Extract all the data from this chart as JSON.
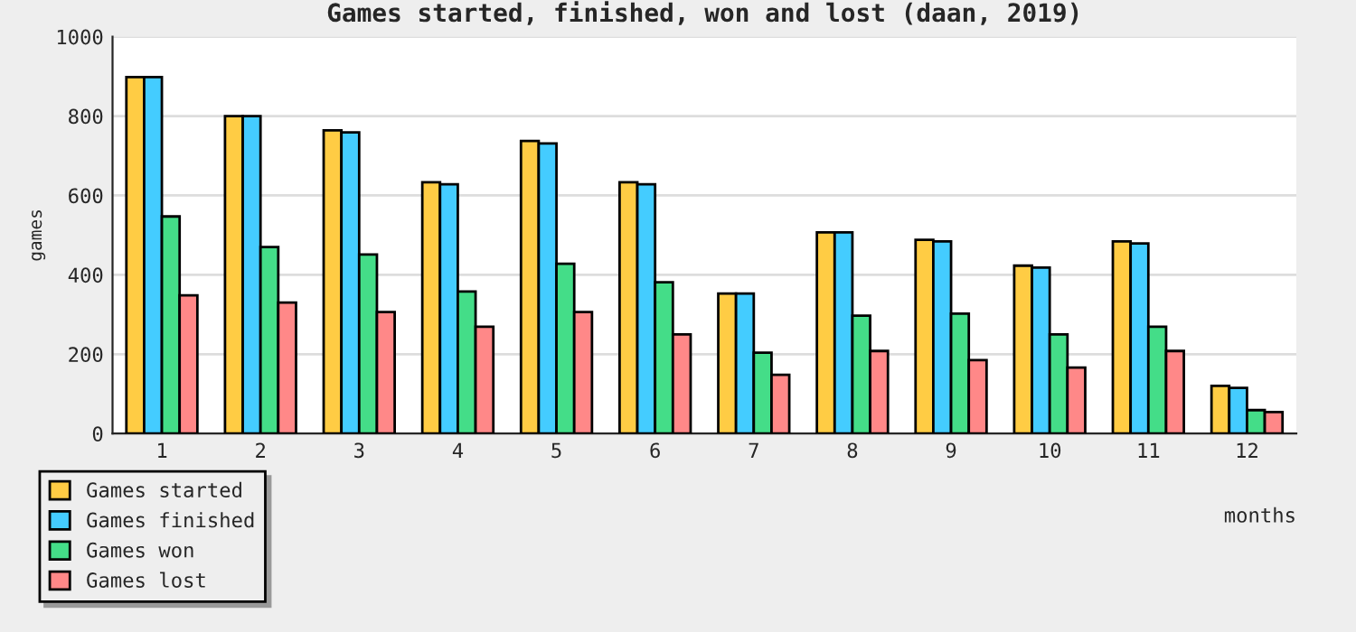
{
  "chart_data": {
    "type": "bar",
    "title": "Games started, finished, won and lost (daan, 2019)",
    "xlabel": "months",
    "ylabel": "games",
    "categories": [
      "1",
      "2",
      "3",
      "4",
      "5",
      "6",
      "7",
      "8",
      "9",
      "10",
      "11",
      "12"
    ],
    "series": [
      {
        "name": "Games started",
        "color": "#ffcc44",
        "values": [
          898,
          800,
          764,
          633,
          737,
          633,
          353,
          507,
          488,
          423,
          484,
          120
        ]
      },
      {
        "name": "Games finished",
        "color": "#44ccff",
        "values": [
          898,
          800,
          759,
          628,
          731,
          628,
          353,
          507,
          484,
          418,
          479,
          115
        ]
      },
      {
        "name": "Games won",
        "color": "#44dd88",
        "values": [
          547,
          470,
          451,
          358,
          428,
          381,
          204,
          297,
          302,
          250,
          269,
          59
        ]
      },
      {
        "name": "Games lost",
        "color": "#ff8888",
        "values": [
          348,
          330,
          306,
          269,
          306,
          250,
          148,
          208,
          185,
          166,
          208,
          54
        ]
      }
    ],
    "ylim": [
      0,
      1000
    ],
    "yticks": [
      0,
      200,
      400,
      600,
      800,
      1000
    ],
    "grid": "y",
    "legend": "bottom left"
  }
}
